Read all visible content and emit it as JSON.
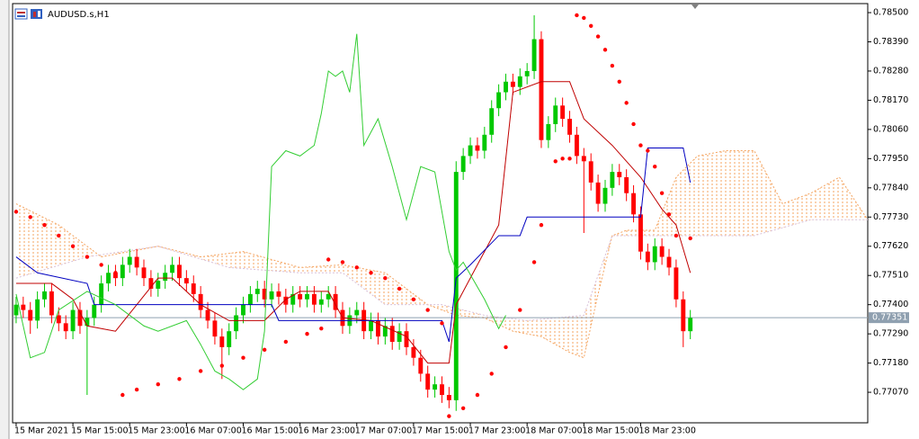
{
  "chart_data": {
    "type": "candlestick",
    "title": "AUDUSD.s,H1",
    "up_color": "#00c800",
    "down_color": "#ff0000",
    "xlim": [
      -0.5,
      120
    ],
    "xticks": [
      {
        "value": 0,
        "label": "15 Mar 2021"
      },
      {
        "value": 8,
        "label": "15 Mar 15:00"
      },
      {
        "value": 16,
        "label": "15 Mar 23:00"
      },
      {
        "value": 24,
        "label": "16 Mar 07:00"
      },
      {
        "value": 32,
        "label": "16 Mar 15:00"
      },
      {
        "value": 40,
        "label": "16 Mar 23:00"
      },
      {
        "value": 48,
        "label": "17 Mar 07:00"
      },
      {
        "value": 56,
        "label": "17 Mar 15:00"
      },
      {
        "value": 64,
        "label": "17 Mar 23:00"
      },
      {
        "value": 72,
        "label": "18 Mar 07:00"
      },
      {
        "value": 80,
        "label": "18 Mar 15:00"
      },
      {
        "value": 88,
        "label": "18 Mar 23:00"
      }
    ],
    "ylim": [
      0.76955,
      0.78534
    ],
    "yticks": [
      {
        "value": 0.785,
        "label": "0.78500"
      },
      {
        "value": 0.7839,
        "label": "0.78390"
      },
      {
        "value": 0.7828,
        "label": "0.78280"
      },
      {
        "value": 0.7817,
        "label": "0.78170"
      },
      {
        "value": 0.7806,
        "label": "0.78060"
      },
      {
        "value": 0.7795,
        "label": "0.77950"
      },
      {
        "value": 0.7784,
        "label": "0.77840"
      },
      {
        "value": 0.7773,
        "label": "0.77730"
      },
      {
        "value": 0.7762,
        "label": "0.77620"
      },
      {
        "value": 0.7751,
        "label": "0.77510"
      },
      {
        "value": 0.774,
        "label": "0.77400"
      },
      {
        "value": 0.7729,
        "label": "0.77290"
      },
      {
        "value": 0.7718,
        "label": "0.77180"
      },
      {
        "value": 0.7707,
        "label": "0.77070"
      }
    ],
    "current_price": {
      "value": 0.77351,
      "label": "0.77351"
    },
    "open": [
      0.7736,
      0.774,
      0.7738,
      0.7734,
      0.7742,
      0.7745,
      0.7736,
      0.7733,
      0.773,
      0.7738,
      0.7732,
      0.7735,
      0.774,
      0.7748,
      0.7752,
      0.775,
      0.7755,
      0.7758,
      0.7754,
      0.775,
      0.7746,
      0.7749,
      0.7752,
      0.7755,
      0.775,
      0.7748,
      0.7744,
      0.7738,
      0.7734,
      0.7728,
      0.7724,
      0.773,
      0.7736,
      0.774,
      0.7744,
      0.7746,
      0.7742,
      0.7745,
      0.7743,
      0.774,
      0.7744,
      0.7742,
      0.7744,
      0.774,
      0.7742,
      0.7744,
      0.7738,
      0.7732,
      0.7736,
      0.7738,
      0.773,
      0.7734,
      0.7728,
      0.7732,
      0.7726,
      0.773,
      0.7724,
      0.772,
      0.7714,
      0.7708,
      0.771,
      0.7706,
      0.7704,
      0.779,
      0.7796,
      0.78,
      0.7798,
      0.7804,
      0.7814,
      0.782,
      0.7824,
      0.7822,
      0.7826,
      0.7828,
      0.784,
      0.7802,
      0.7808,
      0.7815,
      0.781,
      0.7804,
      0.7796,
      0.7794,
      0.7786,
      0.7778,
      0.7784,
      0.779,
      0.7788,
      0.7782,
      0.7774,
      0.776,
      0.7756,
      0.7762,
      0.7758,
      0.7754,
      0.7742,
      0.773
    ],
    "high": [
      0.7743,
      0.7743,
      0.7741,
      0.7745,
      0.7748,
      0.7748,
      0.7739,
      0.7736,
      0.7741,
      0.7741,
      0.7738,
      0.7743,
      0.7751,
      0.7755,
      0.7755,
      0.7758,
      0.7761,
      0.7761,
      0.7757,
      0.7753,
      0.7752,
      0.7755,
      0.7758,
      0.7758,
      0.7753,
      0.7751,
      0.7747,
      0.7741,
      0.7737,
      0.7731,
      0.7733,
      0.7739,
      0.7743,
      0.7747,
      0.7749,
      0.7749,
      0.7748,
      0.7748,
      0.7746,
      0.7747,
      0.7747,
      0.7747,
      0.7747,
      0.7745,
      0.7747,
      0.7747,
      0.7741,
      0.7739,
      0.7741,
      0.7741,
      0.7737,
      0.7737,
      0.7735,
      0.7735,
      0.7733,
      0.7733,
      0.7727,
      0.7723,
      0.7717,
      0.7713,
      0.7713,
      0.7709,
      0.7794,
      0.7799,
      0.7803,
      0.7803,
      0.7807,
      0.7817,
      0.7823,
      0.7827,
      0.7827,
      0.7829,
      0.7831,
      0.7849,
      0.7843,
      0.7811,
      0.7818,
      0.7818,
      0.7813,
      0.7807,
      0.7799,
      0.7797,
      0.7789,
      0.7787,
      0.7793,
      0.7793,
      0.7791,
      0.7785,
      0.7777,
      0.7763,
      0.7765,
      0.7765,
      0.7761,
      0.7757,
      0.7745,
      0.7738
    ],
    "low": [
      0.7733,
      0.7735,
      0.7729,
      0.7731,
      0.7739,
      0.7733,
      0.773,
      0.7727,
      0.7727,
      0.7729,
      0.7706,
      0.7732,
      0.7737,
      0.7745,
      0.7747,
      0.7747,
      0.7752,
      0.7751,
      0.7747,
      0.7743,
      0.7743,
      0.7746,
      0.7749,
      0.7747,
      0.7745,
      0.7741,
      0.7735,
      0.7731,
      0.7725,
      0.7712,
      0.7721,
      0.7727,
      0.7733,
      0.7737,
      0.7741,
      0.7739,
      0.7739,
      0.774,
      0.7737,
      0.7737,
      0.7739,
      0.7739,
      0.7737,
      0.7737,
      0.7739,
      0.7735,
      0.7729,
      0.7729,
      0.7733,
      0.7727,
      0.7727,
      0.7725,
      0.7725,
      0.7723,
      0.7723,
      0.7721,
      0.7717,
      0.7711,
      0.7705,
      0.7705,
      0.7703,
      0.7701,
      0.77,
      0.7787,
      0.7793,
      0.7795,
      0.7795,
      0.7801,
      0.7811,
      0.7817,
      0.7819,
      0.7819,
      0.7823,
      0.7825,
      0.7799,
      0.7799,
      0.7805,
      0.7807,
      0.7801,
      0.7793,
      0.7767,
      0.7783,
      0.7775,
      0.7775,
      0.7781,
      0.7785,
      0.7779,
      0.7771,
      0.7757,
      0.7753,
      0.7753,
      0.7755,
      0.7751,
      0.7739,
      0.7724,
      0.7727
    ],
    "close": [
      0.774,
      0.7738,
      0.7734,
      0.7742,
      0.7745,
      0.7736,
      0.7733,
      0.773,
      0.7738,
      0.7732,
      0.7735,
      0.774,
      0.7748,
      0.7752,
      0.775,
      0.7755,
      0.7758,
      0.7754,
      0.775,
      0.7746,
      0.7749,
      0.7752,
      0.7755,
      0.775,
      0.7748,
      0.7744,
      0.7738,
      0.7734,
      0.7728,
      0.7724,
      0.773,
      0.7736,
      0.774,
      0.7744,
      0.7746,
      0.7742,
      0.7745,
      0.7743,
      0.774,
      0.7744,
      0.7742,
      0.7744,
      0.774,
      0.7742,
      0.7744,
      0.7738,
      0.7732,
      0.7736,
      0.7738,
      0.773,
      0.7734,
      0.7728,
      0.7732,
      0.7726,
      0.773,
      0.7724,
      0.772,
      0.7714,
      0.7708,
      0.771,
      0.7706,
      0.7704,
      0.779,
      0.7796,
      0.78,
      0.7798,
      0.7804,
      0.7814,
      0.782,
      0.7824,
      0.7822,
      0.7826,
      0.7828,
      0.784,
      0.7802,
      0.7808,
      0.7815,
      0.781,
      0.7804,
      0.7796,
      0.7794,
      0.7786,
      0.7778,
      0.7784,
      0.779,
      0.7788,
      0.7782,
      0.7774,
      0.776,
      0.7756,
      0.7762,
      0.7758,
      0.7754,
      0.7742,
      0.773,
      0.7735
    ],
    "cloud": {
      "a": {
        "color": "#f4a460",
        "x": [
          0,
          6,
          12,
          20,
          26,
          32,
          40,
          46,
          52,
          58,
          62,
          66,
          70,
          74,
          78,
          80,
          82,
          84,
          86,
          90,
          93,
          96,
          100,
          104,
          108,
          112,
          116,
          120
        ],
        "values": [
          0.7778,
          0.777,
          0.7758,
          0.7762,
          0.7758,
          0.776,
          0.7754,
          0.7755,
          0.7752,
          0.774,
          0.7736,
          0.7735,
          0.773,
          0.7728,
          0.7722,
          0.772,
          0.7744,
          0.7766,
          0.7768,
          0.7768,
          0.7788,
          0.7796,
          0.7798,
          0.7798,
          0.7778,
          0.7782,
          0.7788,
          0.7772
        ]
      },
      "b": {
        "color": "#d8bfd8",
        "x": [
          0,
          10,
          20,
          30,
          40,
          46,
          52,
          60,
          66,
          72,
          80,
          84,
          90,
          96,
          104,
          112,
          120
        ],
        "values": [
          0.775,
          0.7758,
          0.7762,
          0.7754,
          0.7752,
          0.7752,
          0.774,
          0.774,
          0.7736,
          0.7734,
          0.7736,
          0.7766,
          0.7766,
          0.7766,
          0.7766,
          0.7772,
          0.7772
        ]
      }
    },
    "lines": [
      {
        "color": "#c00000",
        "x": [
          0,
          5,
          8,
          10,
          14,
          17,
          20,
          22,
          26,
          30,
          35,
          38,
          40,
          44,
          46,
          50,
          55,
          58,
          61,
          62,
          64,
          68,
          70,
          74,
          78,
          80,
          84,
          88,
          91,
          93,
          95
        ],
        "values": [
          0.7748,
          0.7748,
          0.7742,
          0.7732,
          0.773,
          0.774,
          0.775,
          0.775,
          0.774,
          0.7734,
          0.7734,
          0.7742,
          0.7745,
          0.7745,
          0.7735,
          0.7734,
          0.7728,
          0.7718,
          0.7718,
          0.774,
          0.775,
          0.777,
          0.782,
          0.7824,
          0.7824,
          0.781,
          0.78,
          0.7788,
          0.7776,
          0.777,
          0.7752
        ]
      },
      {
        "color": "#0000c0",
        "x": [
          0,
          3,
          10,
          11,
          36,
          37,
          60,
          61,
          62,
          64,
          68,
          71,
          72,
          88,
          89,
          94,
          95
        ],
        "values": [
          0.7758,
          0.7752,
          0.7748,
          0.774,
          0.774,
          0.7734,
          0.7734,
          0.7726,
          0.775,
          0.7755,
          0.7766,
          0.7766,
          0.7773,
          0.7773,
          0.7799,
          0.7799,
          0.7786
        ]
      },
      {
        "color": "#32cd32",
        "x": [
          0,
          2,
          4,
          6,
          10,
          14,
          18,
          20,
          24,
          26,
          28,
          30,
          32,
          34,
          35,
          36,
          38,
          40,
          42,
          43,
          44,
          45,
          46,
          47,
          48,
          49,
          51,
          53,
          55,
          57,
          59,
          61,
          62,
          63,
          66,
          68,
          69
        ],
        "values": [
          0.7744,
          0.772,
          0.7722,
          0.7738,
          0.7745,
          0.774,
          0.7732,
          0.773,
          0.7734,
          0.7725,
          0.7715,
          0.7712,
          0.7708,
          0.7712,
          0.773,
          0.7792,
          0.7798,
          0.7796,
          0.78,
          0.7812,
          0.7828,
          0.7826,
          0.7828,
          0.782,
          0.7842,
          0.78,
          0.781,
          0.7792,
          0.7772,
          0.7792,
          0.779,
          0.776,
          0.7753,
          0.7756,
          0.7742,
          0.7731,
          0.7736
        ]
      }
    ],
    "sar": {
      "color": "#ff0000",
      "x": [
        0,
        2,
        4,
        6,
        8,
        10,
        12,
        14,
        15,
        17,
        20,
        23,
        26,
        29,
        32,
        35,
        38,
        41,
        43,
        44,
        46,
        48,
        50,
        52,
        54,
        56,
        58,
        60,
        61,
        63,
        65,
        67,
        69,
        71,
        73,
        74,
        76,
        77,
        78,
        79,
        80,
        81,
        82,
        83,
        84,
        85,
        86,
        87,
        88,
        89,
        90,
        91,
        92,
        93,
        95
      ],
      "values": [
        0.7775,
        0.7773,
        0.777,
        0.7766,
        0.7762,
        0.7758,
        0.7755,
        0.7752,
        0.7706,
        0.7708,
        0.771,
        0.7712,
        0.7715,
        0.7717,
        0.772,
        0.7723,
        0.7726,
        0.7729,
        0.7731,
        0.7757,
        0.7756,
        0.7754,
        0.7752,
        0.775,
        0.7746,
        0.7742,
        0.7738,
        0.7733,
        0.7698,
        0.7701,
        0.7706,
        0.7714,
        0.7724,
        0.7738,
        0.7756,
        0.777,
        0.7794,
        0.7795,
        0.7795,
        0.7849,
        0.7848,
        0.7845,
        0.7841,
        0.7836,
        0.783,
        0.7824,
        0.7816,
        0.7808,
        0.78,
        0.7798,
        0.7792,
        0.7782,
        0.7774,
        0.7766,
        0.7765
      ]
    }
  }
}
